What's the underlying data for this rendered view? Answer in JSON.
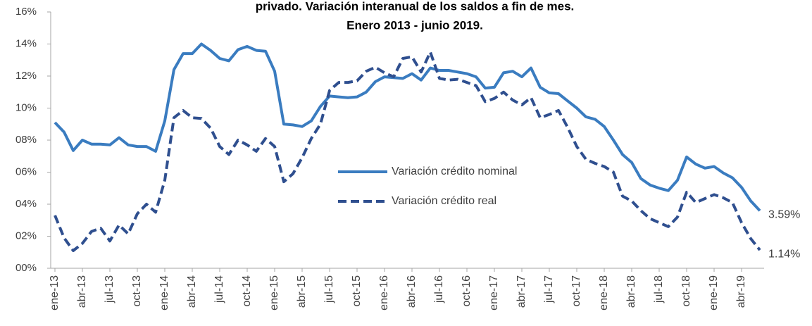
{
  "chart_data": {
    "type": "line",
    "title": [
      "privado. Variación interanual de los saldos a fin de mes.",
      "Enero 2013 - junio 2019."
    ],
    "categories": [
      "ene-13",
      null,
      null,
      "abr-13",
      null,
      null,
      "jul-13",
      null,
      null,
      "oct-13",
      null,
      null,
      "ene-14",
      null,
      null,
      "abr-14",
      null,
      null,
      "jul-14",
      null,
      null,
      "oct-14",
      null,
      null,
      "ene-15",
      null,
      null,
      "abr-15",
      null,
      null,
      "jul-15",
      null,
      null,
      "oct-15",
      null,
      null,
      "ene-16",
      null,
      null,
      "abr-16",
      null,
      null,
      "jul-16",
      null,
      null,
      "oct-16",
      null,
      null,
      "ene-17",
      null,
      null,
      "abr-17",
      null,
      null,
      "jul-17",
      null,
      null,
      "oct-17",
      null,
      null,
      "ene-18",
      null,
      null,
      "abr-18",
      null,
      null,
      "jul-18",
      null,
      null,
      "oct-18",
      null,
      null,
      "ene-19",
      null,
      null,
      "abr-19",
      null,
      null
    ],
    "series": [
      {
        "name": "Variación crédito nominal",
        "color": "#3a7cc0",
        "dash": false,
        "values": [
          9.1,
          8.5,
          7.35,
          8.0,
          7.75,
          7.75,
          7.7,
          8.15,
          7.7,
          7.6,
          7.6,
          7.3,
          9.2,
          12.4,
          13.4,
          13.4,
          14.0,
          13.6,
          13.1,
          12.95,
          13.65,
          13.85,
          13.6,
          13.55,
          12.3,
          9.0,
          8.95,
          8.85,
          9.2,
          10.1,
          10.75,
          10.7,
          10.65,
          10.7,
          11.0,
          11.65,
          11.95,
          11.9,
          11.85,
          12.15,
          11.75,
          12.5,
          12.35,
          12.35,
          12.25,
          12.15,
          11.95,
          11.25,
          11.3,
          12.2,
          12.3,
          11.95,
          12.5,
          11.3,
          10.95,
          10.9,
          10.45,
          10.0,
          9.45,
          9.3,
          8.85,
          8.0,
          7.1,
          6.6,
          5.6,
          5.2,
          5.0,
          4.85,
          5.5,
          6.95,
          6.5,
          6.25,
          6.35,
          5.95,
          5.65,
          5.05,
          4.2,
          3.59
        ],
        "value_labels": [
          null,
          null,
          null,
          null,
          null,
          null,
          null,
          null,
          null,
          null,
          null,
          null,
          null,
          null,
          null,
          null,
          null,
          null,
          null,
          null,
          null,
          null,
          null,
          null,
          null,
          null,
          null,
          null,
          null,
          null,
          null,
          null,
          null,
          null,
          null,
          null,
          null,
          null,
          null,
          null,
          null,
          null,
          null,
          null,
          null,
          null,
          null,
          null,
          null,
          null,
          null,
          null,
          null,
          null,
          null,
          null,
          null,
          null,
          null,
          null,
          null,
          null,
          null,
          null,
          null,
          null,
          null,
          null,
          null,
          null,
          null,
          null,
          null,
          null,
          null,
          null,
          null,
          "3.59%"
        ]
      },
      {
        "name": "Variación crédito real",
        "color": "#2f4f8f",
        "dash": true,
        "values": [
          3.3,
          1.9,
          1.1,
          1.55,
          2.3,
          2.5,
          1.7,
          2.7,
          2.15,
          3.4,
          4.0,
          3.5,
          5.5,
          9.4,
          9.85,
          9.4,
          9.35,
          8.75,
          7.6,
          7.1,
          8.0,
          7.7,
          7.3,
          8.1,
          7.6,
          5.4,
          5.9,
          6.9,
          8.1,
          9.0,
          11.1,
          11.6,
          11.6,
          11.7,
          12.3,
          12.55,
          12.2,
          11.95,
          13.1,
          13.2,
          12.25,
          13.5,
          11.85,
          11.75,
          11.8,
          11.6,
          11.4,
          10.4,
          10.6,
          11.0,
          10.5,
          10.2,
          10.65,
          9.4,
          9.6,
          9.85,
          8.8,
          7.6,
          6.8,
          6.55,
          6.35,
          6.0,
          4.5,
          4.2,
          3.6,
          3.1,
          2.85,
          2.6,
          3.2,
          4.75,
          4.1,
          4.35,
          4.6,
          4.4,
          4.1,
          2.85,
          1.85,
          1.14
        ],
        "value_labels": [
          null,
          null,
          null,
          null,
          null,
          null,
          null,
          null,
          null,
          null,
          null,
          null,
          null,
          null,
          null,
          null,
          null,
          null,
          null,
          null,
          null,
          null,
          null,
          null,
          null,
          null,
          null,
          null,
          null,
          null,
          null,
          null,
          null,
          null,
          null,
          null,
          null,
          null,
          null,
          null,
          null,
          null,
          null,
          null,
          null,
          null,
          null,
          null,
          null,
          null,
          null,
          null,
          null,
          null,
          null,
          null,
          null,
          null,
          null,
          null,
          null,
          null,
          null,
          null,
          null,
          null,
          null,
          null,
          null,
          null,
          null,
          null,
          null,
          null,
          null,
          null,
          null,
          "1.14%"
        ]
      }
    ],
    "ylim": [
      0,
      16
    ],
    "yticks": [
      {
        "value": 0,
        "label": "00%"
      },
      {
        "value": 2,
        "label": "02%"
      },
      {
        "value": 4,
        "label": "04%"
      },
      {
        "value": 6,
        "label": "06%"
      },
      {
        "value": 8,
        "label": "08%"
      },
      {
        "value": 10,
        "label": "10%"
      },
      {
        "value": 12,
        "label": "12%"
      },
      {
        "value": 14,
        "label": "14%"
      },
      {
        "value": 16,
        "label": "16%"
      }
    ],
    "grid": false,
    "legend": "center"
  }
}
